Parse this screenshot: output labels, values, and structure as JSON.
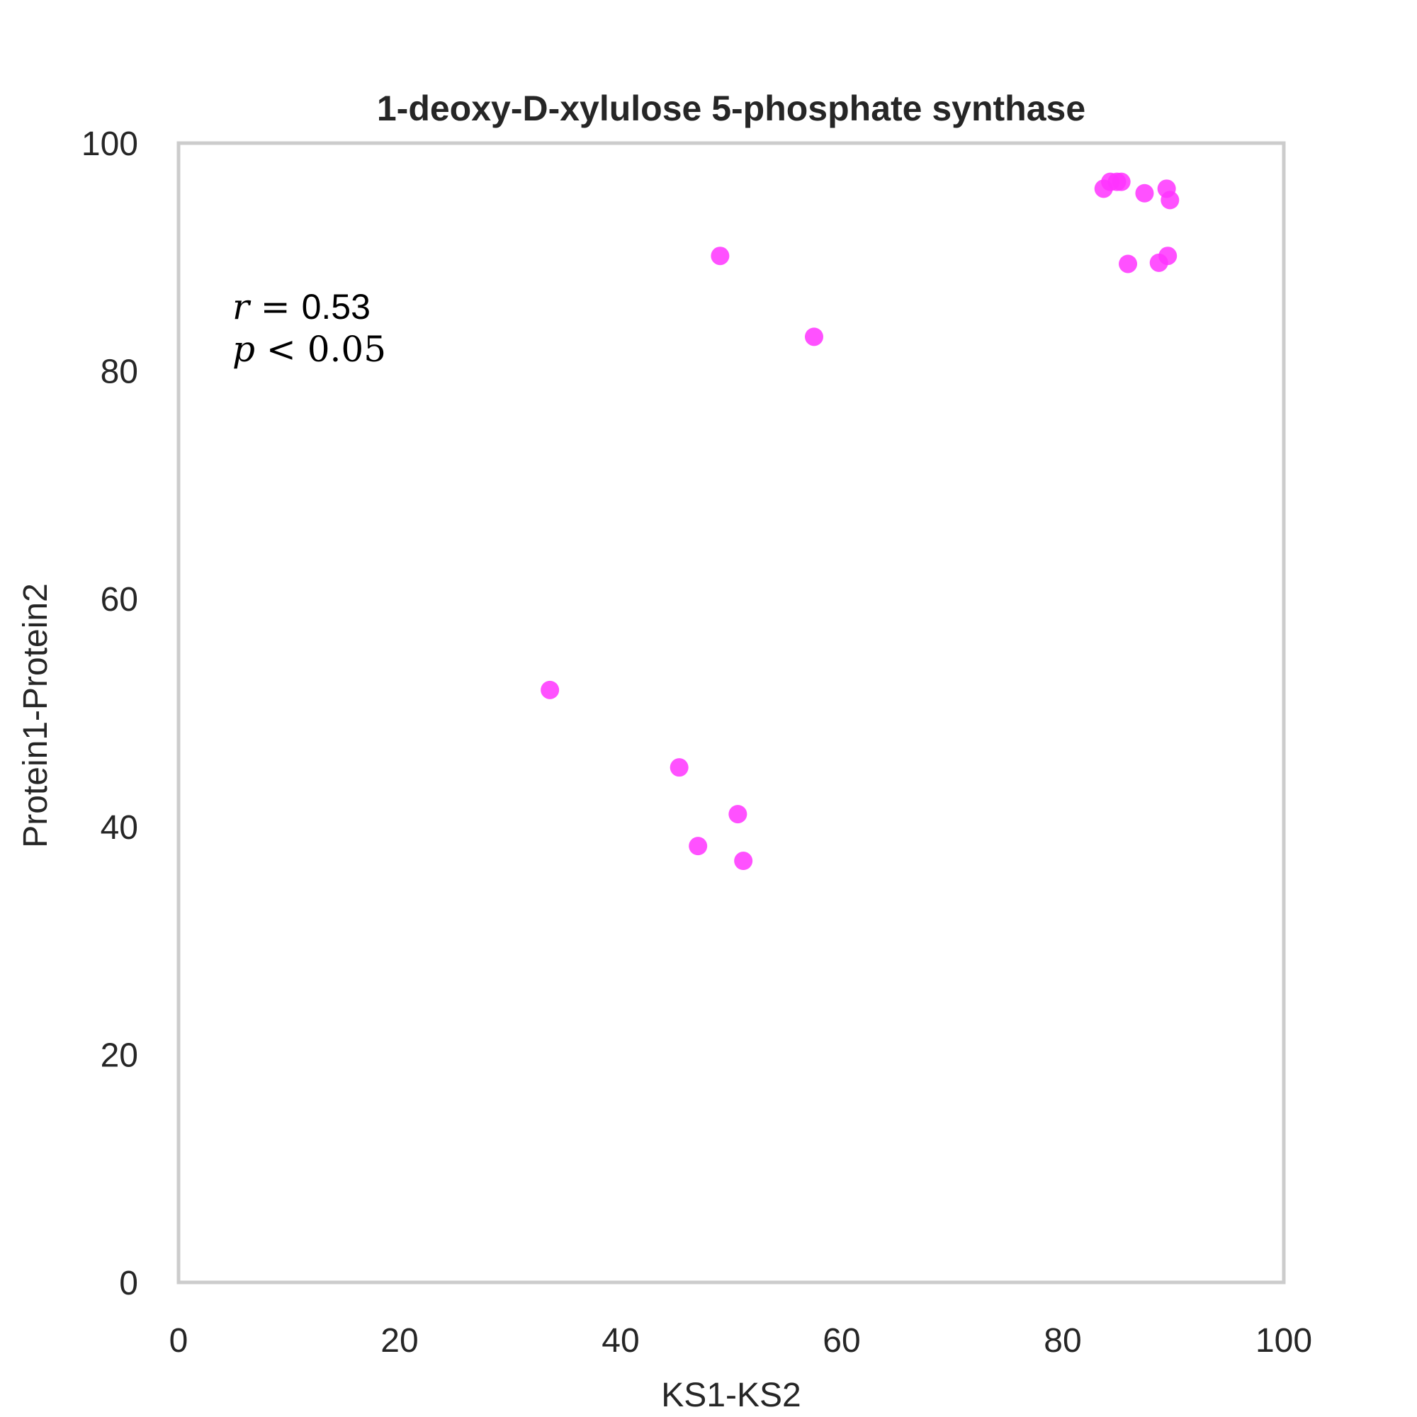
{
  "chart_data": {
    "type": "scatter",
    "title": "1-deoxy-D-xylulose 5-phosphate synthase",
    "xlabel": "KS1-KS2",
    "ylabel": "Protein1-Protein2",
    "xlim": [
      0,
      100
    ],
    "ylim": [
      0,
      100
    ],
    "xticks": [
      "0",
      "20",
      "40",
      "60",
      "80",
      "100"
    ],
    "yticks": [
      "0",
      "20",
      "40",
      "60",
      "80",
      "100"
    ],
    "grid": false,
    "point_color": "#ff33ff",
    "frame_color": "#cccccc",
    "annotation": {
      "r_symbol": "r",
      "eq": " = ",
      "r_value": "0.53",
      "p_symbol": "p",
      "lt": " < ",
      "p_value": "0.05"
    },
    "points": [
      {
        "x": 83.7,
        "y": 96.0
      },
      {
        "x": 84.3,
        "y": 96.6
      },
      {
        "x": 84.9,
        "y": 96.6
      },
      {
        "x": 85.3,
        "y": 96.6
      },
      {
        "x": 87.4,
        "y": 95.6
      },
      {
        "x": 89.4,
        "y": 96.0
      },
      {
        "x": 89.7,
        "y": 95.0
      },
      {
        "x": 89.5,
        "y": 90.1
      },
      {
        "x": 88.7,
        "y": 89.5
      },
      {
        "x": 85.9,
        "y": 89.4
      },
      {
        "x": 49.0,
        "y": 90.1
      },
      {
        "x": 57.5,
        "y": 83.0
      },
      {
        "x": 33.6,
        "y": 52.0
      },
      {
        "x": 45.3,
        "y": 45.2
      },
      {
        "x": 50.6,
        "y": 41.1
      },
      {
        "x": 47.0,
        "y": 38.3
      },
      {
        "x": 51.1,
        "y": 37.0
      }
    ]
  }
}
